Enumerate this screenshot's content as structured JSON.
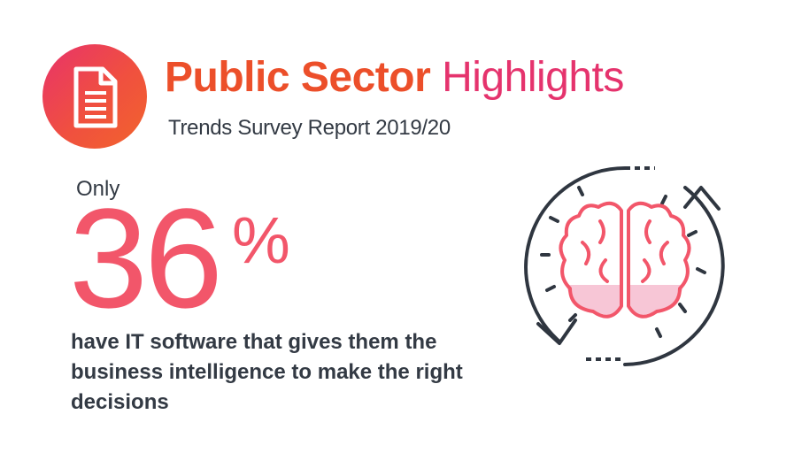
{
  "header": {
    "title_strong": "Public Sector",
    "title_light": "Highlights",
    "subtitle": "Trends Survey Report 2019/20"
  },
  "stat": {
    "prefix": "Only",
    "value": "36",
    "unit": "%",
    "description": "have IT software that gives them the business intelligence to make the right decisions"
  },
  "icons": {
    "logo": "document-icon",
    "illustration": "brain-cycle-icon"
  },
  "colors": {
    "title_orange": "#ec4f2a",
    "title_pink": "#e5336d",
    "stat_coral": "#f2566a",
    "text_dark": "#333a44",
    "brain_fill": "#f7c6d6",
    "arrow_dark": "#2f3640"
  }
}
